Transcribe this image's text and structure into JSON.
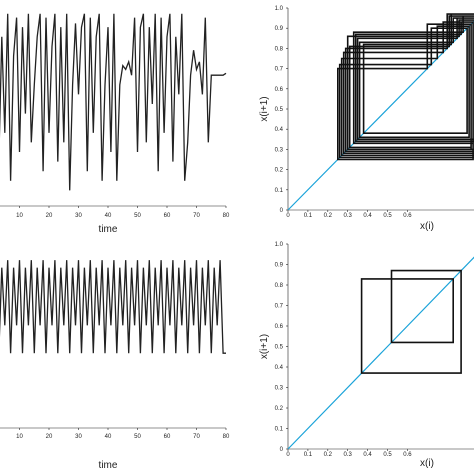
{
  "chart_data": [
    {
      "type": "line",
      "panel": "top-left",
      "xlabel": "time",
      "xlim": [
        0,
        80
      ],
      "ylim": [
        0,
        1
      ],
      "xticks": [
        "10",
        "20",
        "30",
        "40",
        "50",
        "60",
        "70",
        "80"
      ],
      "line_color": "#222222",
      "x": [
        0,
        1,
        2,
        3,
        4,
        5,
        6,
        7,
        8,
        9,
        10,
        11,
        12,
        13,
        14,
        15,
        16,
        17,
        18,
        19,
        20,
        21,
        22,
        23,
        24,
        25,
        26,
        27,
        28,
        29,
        30,
        31,
        32,
        33,
        34,
        35,
        36,
        37,
        38,
        39,
        40,
        41,
        42,
        43,
        44,
        45,
        46,
        47,
        48,
        49,
        50,
        51,
        52,
        53,
        54,
        55,
        56,
        57,
        58,
        59,
        60,
        61,
        62,
        63,
        64,
        65,
        66,
        67,
        68,
        69,
        70,
        71,
        72,
        73,
        74,
        75,
        76,
        77,
        78,
        79,
        80
      ],
      "y": [
        0.85,
        0.55,
        0.97,
        0.2,
        0.85,
        0.35,
        0.97,
        0.1,
        0.75,
        0.95,
        0.25,
        0.9,
        0.45,
        0.97,
        0.3,
        0.6,
        0.85,
        0.97,
        0.15,
        0.95,
        0.35,
        0.8,
        0.97,
        0.2,
        0.9,
        0.3,
        0.97,
        0.05,
        0.6,
        0.92,
        0.55,
        0.9,
        0.97,
        0.15,
        0.95,
        0.35,
        0.85,
        0.97,
        0.1,
        0.6,
        0.9,
        0.25,
        0.97,
        0.1,
        0.6,
        0.7,
        0.68,
        0.72,
        0.65,
        0.95,
        0.25,
        0.9,
        0.97,
        0.3,
        0.9,
        0.5,
        0.97,
        0.15,
        0.95,
        0.35,
        0.85,
        0.97,
        0.2,
        0.85,
        0.55,
        0.97,
        0.1,
        0.3,
        0.65,
        0.78,
        0.68,
        0.72,
        0.55,
        0.95,
        0.3,
        0.65,
        0.65,
        0.65,
        0.65,
        0.65,
        0.66
      ]
    },
    {
      "type": "line",
      "panel": "top-right",
      "title": "",
      "xlabel": "x(i)",
      "ylabel": "x(i+1)",
      "xlim": [
        0,
        1
      ],
      "ylim": [
        0,
        1
      ],
      "xticks": [
        "0",
        "0.1",
        "0.2",
        "0.3",
        "0.4",
        "0.5",
        "0.6"
      ],
      "yticks": [
        "0",
        "0.1",
        "0.2",
        "0.3",
        "0.4",
        "0.5",
        "0.6",
        "0.7",
        "0.8",
        "0.9",
        "1.0"
      ],
      "diagonal_color": "#1aa3d9",
      "cobweb_color": "#111111",
      "orbit": [
        0.25,
        0.7,
        0.92,
        0.3,
        0.8,
        0.97,
        0.35,
        0.85,
        0.95,
        0.28,
        0.78,
        0.93,
        0.33,
        0.88,
        0.96,
        0.26,
        0.72,
        0.9,
        0.38,
        0.82,
        0.97,
        0.3,
        0.86,
        0.94,
        0.27,
        0.75,
        0.91,
        0.36,
        0.83,
        0.95,
        0.29,
        0.8,
        0.97,
        0.34,
        0.87,
        0.93,
        0.25,
        0.7,
        0.92,
        0.31,
        0.81,
        0.96,
        0.28
      ]
    },
    {
      "type": "line",
      "panel": "bottom-left",
      "xlabel": "time",
      "xlim": [
        0,
        80
      ],
      "ylim": [
        0,
        1
      ],
      "xticks": [
        "10",
        "20",
        "30",
        "40",
        "50",
        "60",
        "70",
        "80"
      ],
      "line_color": "#222222",
      "x": [
        0,
        1,
        2,
        3,
        4,
        5,
        6,
        7,
        8,
        9,
        10,
        11,
        12,
        13,
        14,
        15,
        16,
        17,
        18,
        19,
        20,
        21,
        22,
        23,
        24,
        25,
        26,
        27,
        28,
        29,
        30,
        31,
        32,
        33,
        34,
        35,
        36,
        37,
        38,
        39,
        40,
        41,
        42,
        43,
        44,
        45,
        46,
        47,
        48,
        49,
        50,
        51,
        52,
        53,
        54,
        55,
        56,
        57,
        58,
        59,
        60,
        61,
        62,
        63,
        64,
        65,
        66,
        67,
        68,
        69,
        70,
        71,
        72,
        73,
        74,
        75,
        76,
        77,
        78,
        79,
        80
      ],
      "y": [
        0.87,
        0.52,
        0.87,
        0.37,
        0.83,
        0.52,
        0.87,
        0.37,
        0.83,
        0.52,
        0.87,
        0.37,
        0.83,
        0.52,
        0.87,
        0.37,
        0.83,
        0.52,
        0.87,
        0.37,
        0.83,
        0.52,
        0.87,
        0.37,
        0.83,
        0.52,
        0.87,
        0.37,
        0.83,
        0.52,
        0.87,
        0.37,
        0.83,
        0.52,
        0.87,
        0.37,
        0.83,
        0.52,
        0.87,
        0.37,
        0.83,
        0.52,
        0.87,
        0.37,
        0.83,
        0.52,
        0.87,
        0.37,
        0.83,
        0.52,
        0.87,
        0.37,
        0.83,
        0.52,
        0.87,
        0.37,
        0.83,
        0.52,
        0.87,
        0.37,
        0.83,
        0.52,
        0.87,
        0.37,
        0.83,
        0.52,
        0.87,
        0.37,
        0.83,
        0.52,
        0.87,
        0.37,
        0.83,
        0.52,
        0.87,
        0.37,
        0.83,
        0.52,
        0.87,
        0.37,
        0.37
      ]
    },
    {
      "type": "line",
      "panel": "bottom-right",
      "xlabel": "x(i)",
      "ylabel": "x(i+1)",
      "xlim": [
        0,
        1
      ],
      "ylim": [
        0,
        1
      ],
      "xticks": [
        "0",
        "0.1",
        "0.2",
        "0.3",
        "0.4",
        "0.5",
        "0.6"
      ],
      "yticks": [
        "0",
        "0.1",
        "0.2",
        "0.3",
        "0.4",
        "0.5",
        "0.6",
        "0.7",
        "0.8",
        "0.9",
        "1.0"
      ],
      "diagonal_color": "#1aa3d9",
      "cobweb_color": "#111111",
      "orbit": [
        0.37,
        0.83,
        0.52,
        0.87,
        0.37,
        0.83,
        0.52,
        0.87,
        0.37,
        0.83,
        0.52,
        0.87,
        0.37,
        0.83,
        0.52,
        0.87,
        0.37,
        0.83,
        0.52,
        0.87,
        0.37,
        0.83,
        0.52,
        0.87,
        0.37,
        0.83,
        0.52,
        0.87,
        0.37,
        0.83,
        0.52,
        0.87,
        0.37
      ]
    }
  ]
}
